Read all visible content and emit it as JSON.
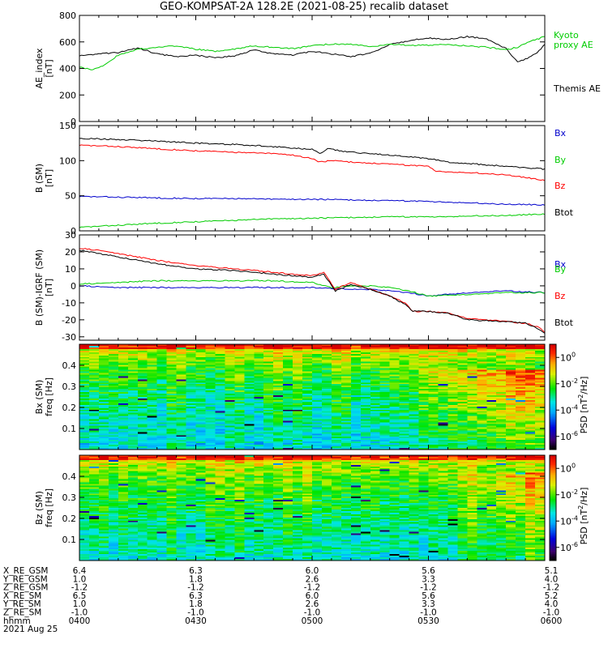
{
  "title": "GEO-KOMPSAT-2A 128.2E (2021-08-25) recalib dataset",
  "colors": {
    "black": "#000000",
    "red": "#ff0000",
    "green": "#00cc00",
    "blue": "#0000cc"
  },
  "chart_data": [
    {
      "type": "line",
      "id": "ae",
      "ylabel": [
        "AE_index",
        "[nT]"
      ],
      "ylim": [
        0,
        800
      ],
      "yticks": [
        0,
        200,
        400,
        600,
        800
      ],
      "xlim": [
        0,
        120
      ],
      "legend": [
        {
          "label": "Kyoto\nproxy AE",
          "color": "#00cc00"
        },
        {
          "label": "Themis AE",
          "color": "#000000"
        }
      ],
      "series": [
        {
          "name": "Themis AE",
          "color": "#000000",
          "x": [
            0,
            5,
            10,
            15,
            20,
            25,
            30,
            35,
            40,
            45,
            50,
            55,
            60,
            65,
            70,
            75,
            80,
            85,
            90,
            95,
            100,
            105,
            110,
            113,
            115,
            118,
            120
          ],
          "y": [
            495,
            510,
            520,
            555,
            510,
            490,
            500,
            480,
            495,
            540,
            510,
            500,
            530,
            510,
            490,
            515,
            580,
            610,
            630,
            620,
            640,
            625,
            550,
            450,
            470,
            520,
            580
          ]
        },
        {
          "name": "Kyoto proxy AE",
          "color": "#00cc00",
          "x": [
            0,
            3,
            6,
            10,
            15,
            20,
            25,
            30,
            35,
            40,
            45,
            50,
            55,
            60,
            65,
            70,
            75,
            80,
            85,
            90,
            95,
            100,
            105,
            110,
            113,
            116,
            120
          ],
          "y": [
            410,
            390,
            420,
            500,
            545,
            560,
            570,
            545,
            530,
            545,
            570,
            560,
            550,
            570,
            585,
            580,
            565,
            580,
            575,
            575,
            580,
            570,
            560,
            540,
            560,
            600,
            640
          ]
        }
      ]
    },
    {
      "type": "line",
      "id": "bsm",
      "ylabel": [
        "B (SM)",
        "[nT]"
      ],
      "ylim": [
        0,
        150
      ],
      "yticks": [
        0,
        50,
        100,
        150
      ],
      "xlim": [
        0,
        120
      ],
      "legend": [
        {
          "label": "Bx",
          "color": "#0000cc"
        },
        {
          "label": "By",
          "color": "#00cc00"
        },
        {
          "label": "Bz",
          "color": "#ff0000"
        },
        {
          "label": "Btot",
          "color": "#000000"
        }
      ],
      "series": [
        {
          "name": "Btot",
          "color": "#000000",
          "x": [
            0,
            10,
            20,
            30,
            40,
            50,
            60,
            62,
            64,
            70,
            80,
            90,
            95,
            100,
            110,
            120
          ],
          "y": [
            132,
            130,
            128,
            125,
            123,
            120,
            116,
            110,
            117,
            112,
            108,
            103,
            98,
            96,
            92,
            88
          ]
        },
        {
          "name": "Bz",
          "color": "#ff0000",
          "x": [
            0,
            10,
            20,
            30,
            40,
            50,
            55,
            60,
            62,
            65,
            70,
            80,
            90,
            92,
            100,
            110,
            120
          ],
          "y": [
            122,
            120,
            117,
            114,
            112,
            110,
            108,
            103,
            98,
            100,
            98,
            95,
            92,
            85,
            83,
            80,
            72
          ]
        },
        {
          "name": "Bx",
          "color": "#0000cc",
          "x": [
            0,
            10,
            20,
            30,
            40,
            50,
            60,
            70,
            80,
            90,
            100,
            110,
            120
          ],
          "y": [
            49,
            48,
            47,
            46,
            46,
            45,
            45,
            44,
            43,
            42,
            40,
            38,
            37
          ]
        },
        {
          "name": "By",
          "color": "#00cc00",
          "x": [
            0,
            10,
            20,
            30,
            40,
            50,
            60,
            70,
            80,
            90,
            100,
            110,
            120
          ],
          "y": [
            5,
            8,
            11,
            13,
            15,
            17,
            18,
            19,
            20,
            20,
            21,
            22,
            24
          ]
        }
      ]
    },
    {
      "type": "line",
      "id": "dbsm",
      "ylabel": [
        "B (SM)-IGRF (SM)",
        "[nT]"
      ],
      "ylim": [
        -32,
        30
      ],
      "yticks": [
        -30,
        -20,
        -10,
        0,
        10,
        20,
        30
      ],
      "xlim": [
        0,
        120
      ],
      "legend": [
        {
          "label": "Bx",
          "color": "#0000cc"
        },
        {
          "label": "By",
          "color": "#00cc00"
        },
        {
          "label": "Bz",
          "color": "#ff0000"
        },
        {
          "label": "Btot",
          "color": "#000000"
        }
      ],
      "series": [
        {
          "name": "Bx",
          "color": "#0000cc",
          "x": [
            0,
            10,
            20,
            30,
            40,
            50,
            60,
            70,
            75,
            80,
            85,
            90,
            100,
            110,
            120
          ],
          "y": [
            0,
            -1,
            -1,
            -1,
            -1,
            -1,
            -1,
            -2,
            -2,
            -3,
            -4,
            -6,
            -4,
            -3,
            -4
          ]
        },
        {
          "name": "By",
          "color": "#00cc00",
          "x": [
            0,
            10,
            20,
            30,
            40,
            50,
            60,
            65,
            70,
            75,
            80,
            85,
            90,
            100,
            110,
            120
          ],
          "y": [
            1,
            2,
            3,
            3,
            3,
            3,
            2,
            -1,
            0,
            0,
            -1,
            -3,
            -6,
            -5,
            -4,
            -4
          ]
        },
        {
          "name": "Bz",
          "color": "#ff0000",
          "x": [
            0,
            5,
            10,
            20,
            30,
            40,
            50,
            55,
            60,
            63,
            66,
            70,
            75,
            80,
            84,
            86,
            90,
            95,
            100,
            110,
            115,
            118,
            120
          ],
          "y": [
            22,
            21,
            19,
            15,
            12,
            10,
            8,
            7,
            6,
            8,
            -2,
            2,
            -2,
            -6,
            -10,
            -15,
            -15,
            -16,
            -19,
            -21,
            -22,
            -24,
            -27
          ]
        },
        {
          "name": "Btot",
          "color": "#000000",
          "x": [
            0,
            5,
            10,
            20,
            30,
            40,
            50,
            55,
            60,
            63,
            66,
            70,
            75,
            80,
            84,
            86,
            90,
            95,
            100,
            110,
            115,
            118,
            120
          ],
          "y": [
            21,
            19,
            17,
            13,
            10,
            9,
            7,
            6,
            5,
            7,
            -3,
            1,
            -2,
            -6,
            -11,
            -15,
            -15,
            -16,
            -20,
            -21,
            -22,
            -25,
            -28
          ]
        }
      ]
    },
    {
      "type": "heatmap",
      "id": "bx-spec",
      "ylabel": [
        "Bx (SM)",
        "freq [Hz]"
      ],
      "ylim": [
        0,
        0.5
      ],
      "yticks": [
        0.1,
        0.2,
        0.3,
        0.4
      ],
      "colorbar": {
        "label": "PSD [nT^2/Hz]",
        "ticks": [
          "10^0",
          "10^-2",
          "10^-4",
          "10^-6"
        ],
        "exp_range": [
          -7,
          1
        ]
      },
      "model": {
        "base_low": 0.3,
        "base_high": -3.5,
        "storm_start": 0.72,
        "storm_gain": 2.6,
        "storm_fmin": 0.12,
        "noise": 1.6,
        "seed": 7
      }
    },
    {
      "type": "heatmap",
      "id": "bz-spec",
      "ylabel": [
        "Bz (SM)",
        "freq [Hz]"
      ],
      "ylim": [
        0,
        0.5
      ],
      "yticks": [
        0.1,
        0.2,
        0.3,
        0.4
      ],
      "colorbar": {
        "label": "PSD [nT^2/Hz]",
        "ticks": [
          "10^0",
          "10^-2",
          "10^-4",
          "10^-6"
        ],
        "exp_range": [
          -7,
          1
        ]
      },
      "model": {
        "base_low": 0.2,
        "base_high": -3.2,
        "storm_start": 0.78,
        "storm_gain": 1.6,
        "storm_fmin": 0.08,
        "noise": 1.5,
        "seed": 19
      }
    }
  ],
  "ephemeris": {
    "labels": [
      "X_RE_GSM",
      "Y_RE_GSM",
      "Z_RE_GSM",
      "X_RE_SM",
      "Y_RE_SM",
      "Z_RE_SM",
      "hhmm"
    ],
    "columns": [
      [
        "6.4",
        "1.0",
        "-1.2",
        "6.5",
        "1.0",
        "-1.0",
        "0400"
      ],
      [
        "6.3",
        "1.8",
        "-1.2",
        "6.3",
        "1.8",
        "-1.0",
        "0430"
      ],
      [
        "6.0",
        "2.6",
        "-1.2",
        "6.0",
        "2.6",
        "-1.0",
        "0500"
      ],
      [
        "5.6",
        "3.3",
        "-1.2",
        "5.6",
        "3.3",
        "-1.0",
        "0530"
      ],
      [
        "5.1",
        "4.0",
        "-1.2",
        "5.2",
        "4.0",
        "-1.0",
        "0600"
      ]
    ],
    "date": "2021 Aug 25"
  }
}
